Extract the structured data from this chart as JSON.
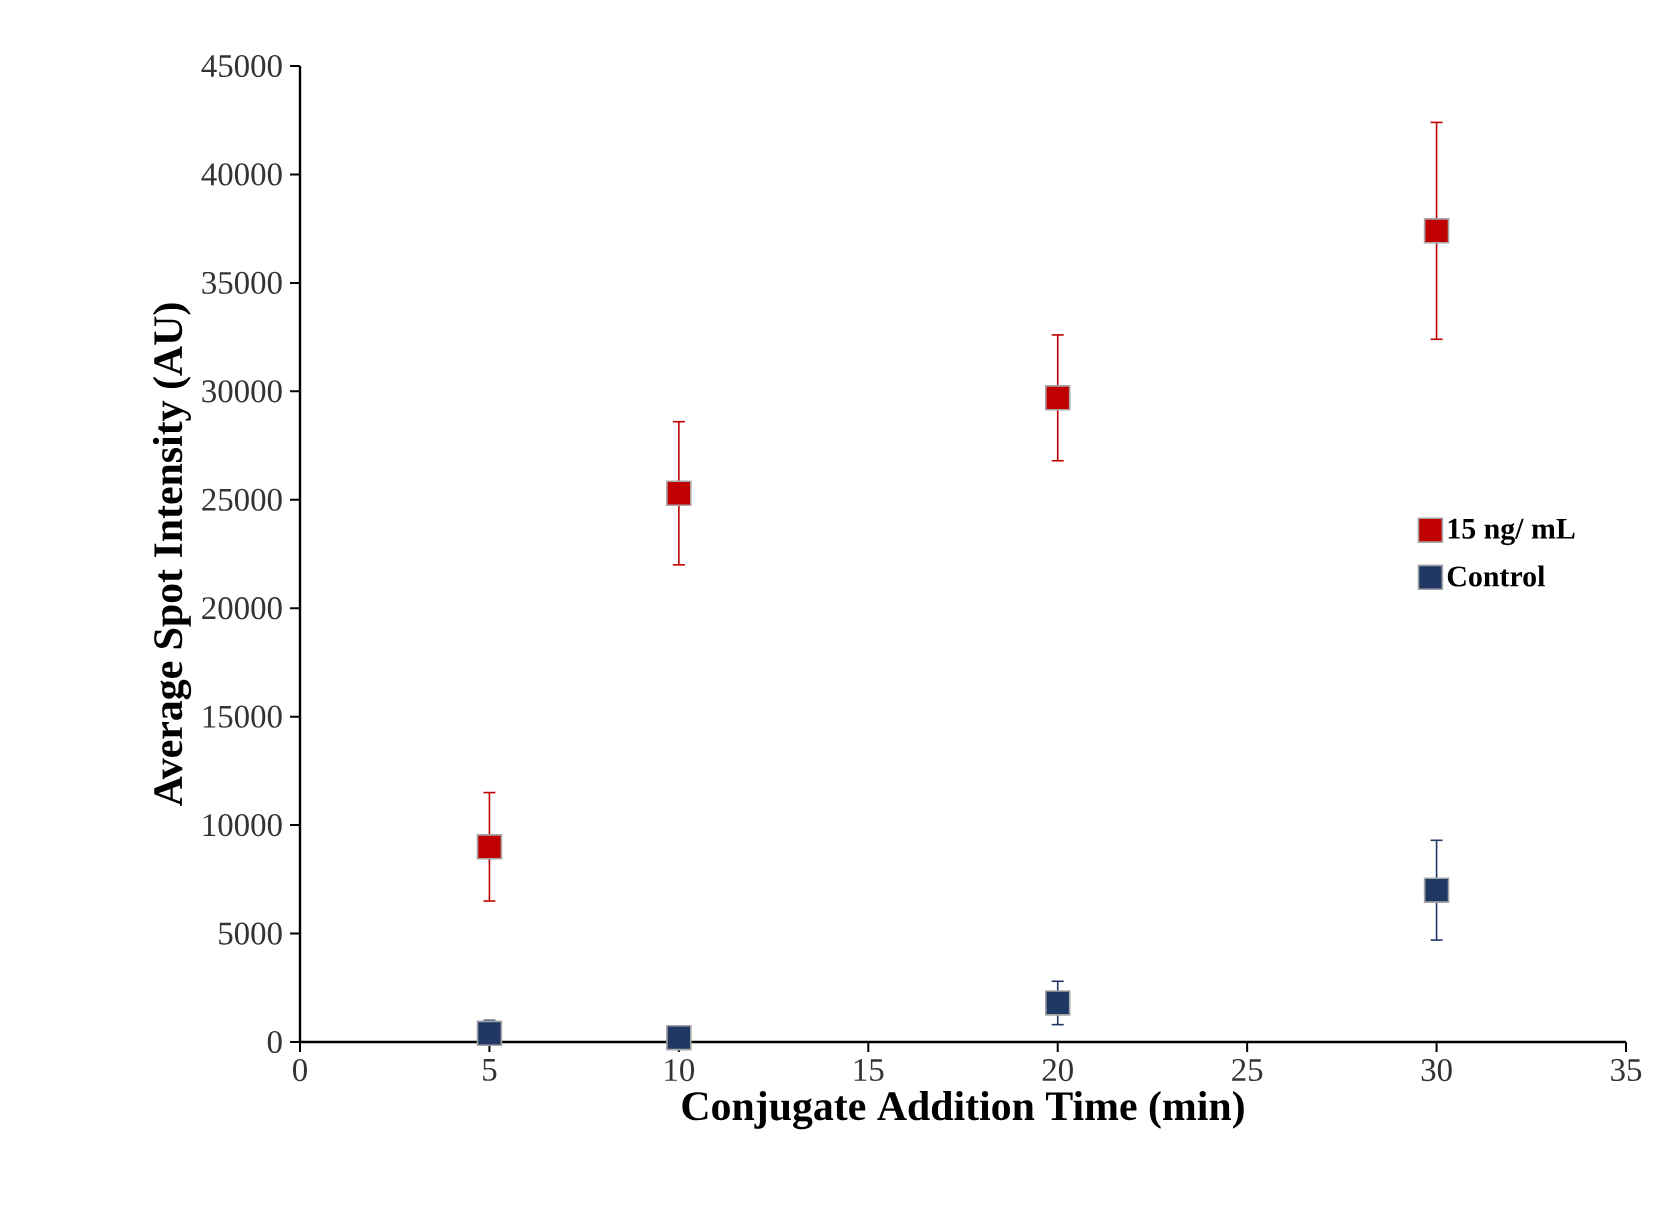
{
  "chart_data": {
    "type": "scatter",
    "xlabel": "Conjugate Addition Time (min)",
    "ylabel": "Average Spot Intensity (AU)",
    "xlim": [
      0,
      35
    ],
    "xticks": [
      0,
      5,
      10,
      15,
      20,
      25,
      30,
      35
    ],
    "ylim": [
      0,
      45000
    ],
    "yticks": [
      0,
      5000,
      10000,
      15000,
      20000,
      25000,
      30000,
      35000,
      40000,
      45000
    ],
    "marker": "square",
    "legend": "right",
    "grid": false,
    "series": [
      {
        "name": "15 ng/ mL",
        "color": "#c00000",
        "x": [
          5,
          10,
          20,
          30
        ],
        "values": [
          9000,
          25300,
          29700,
          37400
        ],
        "errors": [
          2500,
          3300,
          2900,
          5000
        ]
      },
      {
        "name": "Control",
        "color": "#1f3864",
        "x": [
          5,
          10,
          20,
          30
        ],
        "values": [
          400,
          200,
          1800,
          7000
        ],
        "errors": [
          600,
          150,
          1000,
          2300
        ]
      }
    ]
  }
}
